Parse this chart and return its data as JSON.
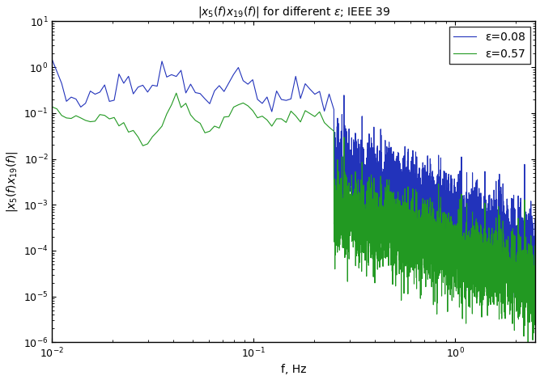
{
  "title": "|x_5(f)x_{19}(f)| for different ε; IEEE 39",
  "xlabel": "f, Hz",
  "color_blue": "#2233bb",
  "color_green": "#229922",
  "legend_eps_blue": "ε=0.08",
  "legend_eps_green": "ε=0.57",
  "xlim": [
    0.01,
    2.5
  ],
  "ylim": [
    1e-06,
    10.0
  ],
  "linewidth": 0.8,
  "n_low": 60,
  "n_high": 3000,
  "f_transition": 0.25,
  "seed_blue": 7,
  "seed_green": 13
}
